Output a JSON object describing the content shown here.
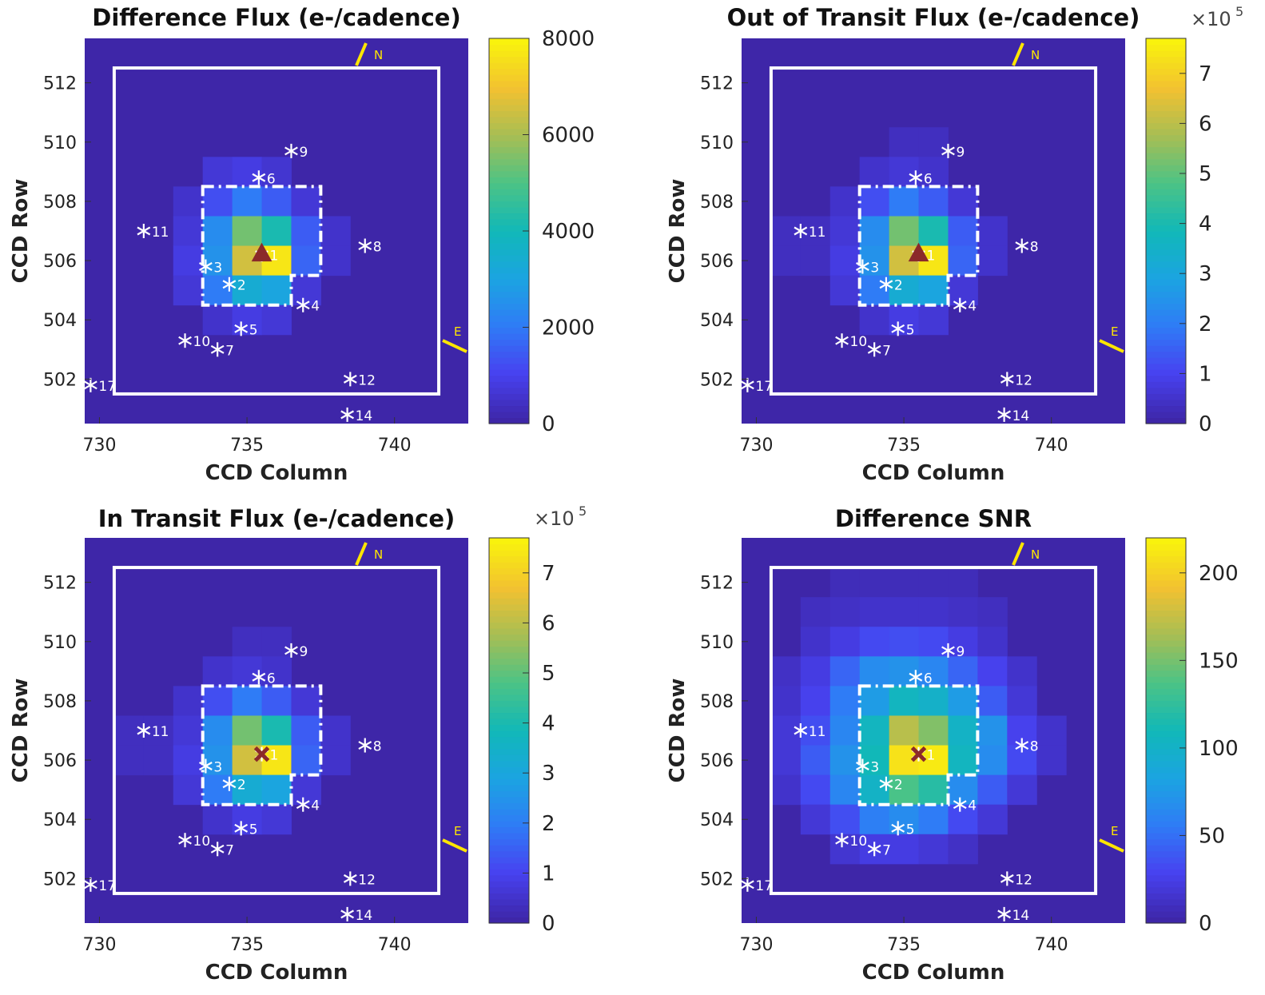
{
  "figure": {
    "background": "#ffffff"
  },
  "colors": {
    "colormap": [
      "#3e26a8",
      "#4742f0",
      "#2f7cf6",
      "#1ba4e1",
      "#11b8b8",
      "#4bc386",
      "#a6be54",
      "#f2c131",
      "#f9f20d"
    ],
    "aperture": "#ffffff",
    "star": "#ffffff",
    "compass": "#ffe600",
    "marker": "#8b2a2a",
    "axes_background": "#3e26a8"
  },
  "shared": {
    "x_ticks": [
      730,
      735,
      740
    ],
    "y_ticks": [
      502,
      504,
      506,
      508,
      510,
      512
    ],
    "xlim": [
      729.5,
      742.5
    ],
    "ylim": [
      500.5,
      513.5
    ],
    "compass": {
      "north_label": "N",
      "east_label": "E"
    },
    "stars": [
      {
        "id": "1",
        "col": 735.5,
        "row": 506.2
      },
      {
        "id": "2",
        "col": 734.4,
        "row": 505.2
      },
      {
        "id": "3",
        "col": 733.6,
        "row": 505.8
      },
      {
        "id": "4",
        "col": 736.9,
        "row": 504.5
      },
      {
        "id": "5",
        "col": 734.8,
        "row": 503.7
      },
      {
        "id": "6",
        "col": 735.4,
        "row": 508.8
      },
      {
        "id": "7",
        "col": 734.0,
        "row": 503.0
      },
      {
        "id": "8",
        "col": 739.0,
        "row": 506.5
      },
      {
        "id": "9",
        "col": 736.5,
        "row": 509.7
      },
      {
        "id": "10",
        "col": 732.9,
        "row": 503.3
      },
      {
        "id": "11",
        "col": 731.5,
        "row": 507.0
      },
      {
        "id": "12",
        "col": 738.5,
        "row": 502.0
      },
      {
        "id": "14",
        "col": 738.4,
        "row": 500.8
      },
      {
        "id": "17",
        "col": 729.7,
        "row": 501.8
      }
    ]
  },
  "chart_data": [
    {
      "type": "heatmap",
      "title": "Difference Flux (e-/cadence)",
      "xlabel": "CCD Column",
      "ylabel": "CCD Row",
      "colorbar": {
        "range": [
          0,
          8000
        ],
        "ticks": [
          "0",
          "2000",
          "4000",
          "6000",
          "8000"
        ],
        "multiplier": ""
      },
      "marker": "triangle",
      "cells": [
        {
          "col": 734,
          "row": 509,
          "v": 0.08
        },
        {
          "col": 735,
          "row": 509,
          "v": 0.1
        },
        {
          "col": 736,
          "row": 509,
          "v": 0.07
        },
        {
          "col": 733,
          "row": 508,
          "v": 0.06
        },
        {
          "col": 734,
          "row": 508,
          "v": 0.15
        },
        {
          "col": 735,
          "row": 508,
          "v": 0.25
        },
        {
          "col": 736,
          "row": 508,
          "v": 0.18
        },
        {
          "col": 737,
          "row": 508,
          "v": 0.08
        },
        {
          "col": 733,
          "row": 507,
          "v": 0.08
        },
        {
          "col": 734,
          "row": 507,
          "v": 0.3
        },
        {
          "col": 735,
          "row": 507,
          "v": 0.68
        },
        {
          "col": 736,
          "row": 507,
          "v": 0.52
        },
        {
          "col": 737,
          "row": 507,
          "v": 0.18
        },
        {
          "col": 738,
          "row": 507,
          "v": 0.06
        },
        {
          "col": 733,
          "row": 506,
          "v": 0.1
        },
        {
          "col": 734,
          "row": 506,
          "v": 0.32
        },
        {
          "col": 735,
          "row": 506,
          "v": 0.82
        },
        {
          "col": 736,
          "row": 506,
          "v": 0.97
        },
        {
          "col": 737,
          "row": 506,
          "v": 0.2
        },
        {
          "col": 738,
          "row": 506,
          "v": 0.06
        },
        {
          "col": 733,
          "row": 505,
          "v": 0.08
        },
        {
          "col": 734,
          "row": 505,
          "v": 0.25
        },
        {
          "col": 735,
          "row": 505,
          "v": 0.42
        },
        {
          "col": 736,
          "row": 505,
          "v": 0.38
        },
        {
          "col": 737,
          "row": 505,
          "v": 0.08
        },
        {
          "col": 734,
          "row": 504,
          "v": 0.06
        },
        {
          "col": 735,
          "row": 504,
          "v": 0.1
        },
        {
          "col": 736,
          "row": 504,
          "v": 0.08
        }
      ]
    },
    {
      "type": "heatmap",
      "title": "Out of Transit Flux (e-/cadence)",
      "xlabel": "CCD Column",
      "ylabel": "CCD Row",
      "colorbar": {
        "range": [
          0,
          7.7
        ],
        "ticks": [
          "0",
          "1",
          "2",
          "3",
          "4",
          "5",
          "6",
          "7"
        ],
        "multiplier": "×10",
        "multiplier_exp": "5"
      },
      "marker": "triangle",
      "cells": [
        {
          "col": 735,
          "row": 510,
          "v": 0.04
        },
        {
          "col": 736,
          "row": 510,
          "v": 0.04
        },
        {
          "col": 734,
          "row": 509,
          "v": 0.06
        },
        {
          "col": 735,
          "row": 509,
          "v": 0.08
        },
        {
          "col": 736,
          "row": 509,
          "v": 0.06
        },
        {
          "col": 733,
          "row": 508,
          "v": 0.06
        },
        {
          "col": 734,
          "row": 508,
          "v": 0.15
        },
        {
          "col": 735,
          "row": 508,
          "v": 0.25
        },
        {
          "col": 736,
          "row": 508,
          "v": 0.18
        },
        {
          "col": 737,
          "row": 508,
          "v": 0.08
        },
        {
          "col": 731,
          "row": 507,
          "v": 0.04
        },
        {
          "col": 732,
          "row": 507,
          "v": 0.04
        },
        {
          "col": 733,
          "row": 507,
          "v": 0.08
        },
        {
          "col": 734,
          "row": 507,
          "v": 0.3
        },
        {
          "col": 735,
          "row": 507,
          "v": 0.68
        },
        {
          "col": 736,
          "row": 507,
          "v": 0.52
        },
        {
          "col": 737,
          "row": 507,
          "v": 0.18
        },
        {
          "col": 738,
          "row": 507,
          "v": 0.06
        },
        {
          "col": 731,
          "row": 506,
          "v": 0.04
        },
        {
          "col": 732,
          "row": 506,
          "v": 0.04
        },
        {
          "col": 733,
          "row": 506,
          "v": 0.1
        },
        {
          "col": 734,
          "row": 506,
          "v": 0.32
        },
        {
          "col": 735,
          "row": 506,
          "v": 0.82
        },
        {
          "col": 736,
          "row": 506,
          "v": 0.97
        },
        {
          "col": 737,
          "row": 506,
          "v": 0.2
        },
        {
          "col": 738,
          "row": 506,
          "v": 0.06
        },
        {
          "col": 733,
          "row": 505,
          "v": 0.08
        },
        {
          "col": 734,
          "row": 505,
          "v": 0.25
        },
        {
          "col": 735,
          "row": 505,
          "v": 0.42
        },
        {
          "col": 736,
          "row": 505,
          "v": 0.38
        },
        {
          "col": 737,
          "row": 505,
          "v": 0.08
        },
        {
          "col": 734,
          "row": 504,
          "v": 0.06
        },
        {
          "col": 735,
          "row": 504,
          "v": 0.1
        },
        {
          "col": 736,
          "row": 504,
          "v": 0.08
        }
      ]
    },
    {
      "type": "heatmap",
      "title": "In Transit Flux (e-/cadence)",
      "xlabel": "CCD Column",
      "ylabel": "CCD Row",
      "colorbar": {
        "range": [
          0,
          7.7
        ],
        "ticks": [
          "0",
          "1",
          "2",
          "3",
          "4",
          "5",
          "6",
          "7"
        ],
        "multiplier": "×10",
        "multiplier_exp": "5"
      },
      "marker": "x",
      "cells": [
        {
          "col": 735,
          "row": 510,
          "v": 0.04
        },
        {
          "col": 736,
          "row": 510,
          "v": 0.04
        },
        {
          "col": 734,
          "row": 509,
          "v": 0.06
        },
        {
          "col": 735,
          "row": 509,
          "v": 0.08
        },
        {
          "col": 736,
          "row": 509,
          "v": 0.06
        },
        {
          "col": 733,
          "row": 508,
          "v": 0.06
        },
        {
          "col": 734,
          "row": 508,
          "v": 0.15
        },
        {
          "col": 735,
          "row": 508,
          "v": 0.25
        },
        {
          "col": 736,
          "row": 508,
          "v": 0.18
        },
        {
          "col": 737,
          "row": 508,
          "v": 0.08
        },
        {
          "col": 731,
          "row": 507,
          "v": 0.04
        },
        {
          "col": 732,
          "row": 507,
          "v": 0.04
        },
        {
          "col": 733,
          "row": 507,
          "v": 0.08
        },
        {
          "col": 734,
          "row": 507,
          "v": 0.3
        },
        {
          "col": 735,
          "row": 507,
          "v": 0.68
        },
        {
          "col": 736,
          "row": 507,
          "v": 0.52
        },
        {
          "col": 737,
          "row": 507,
          "v": 0.18
        },
        {
          "col": 738,
          "row": 507,
          "v": 0.06
        },
        {
          "col": 731,
          "row": 506,
          "v": 0.04
        },
        {
          "col": 732,
          "row": 506,
          "v": 0.04
        },
        {
          "col": 733,
          "row": 506,
          "v": 0.1
        },
        {
          "col": 734,
          "row": 506,
          "v": 0.32
        },
        {
          "col": 735,
          "row": 506,
          "v": 0.82
        },
        {
          "col": 736,
          "row": 506,
          "v": 0.97
        },
        {
          "col": 737,
          "row": 506,
          "v": 0.2
        },
        {
          "col": 738,
          "row": 506,
          "v": 0.06
        },
        {
          "col": 733,
          "row": 505,
          "v": 0.08
        },
        {
          "col": 734,
          "row": 505,
          "v": 0.25
        },
        {
          "col": 735,
          "row": 505,
          "v": 0.42
        },
        {
          "col": 736,
          "row": 505,
          "v": 0.38
        },
        {
          "col": 737,
          "row": 505,
          "v": 0.08
        },
        {
          "col": 734,
          "row": 504,
          "v": 0.06
        },
        {
          "col": 735,
          "row": 504,
          "v": 0.1
        },
        {
          "col": 736,
          "row": 504,
          "v": 0.08
        }
      ]
    },
    {
      "type": "heatmap",
      "title": "Difference SNR",
      "xlabel": "CCD Column",
      "ylabel": "CCD Row",
      "colorbar": {
        "range": [
          0,
          220
        ],
        "ticks": [
          "0",
          "50",
          "100",
          "150",
          "200"
        ],
        "multiplier": ""
      },
      "marker": "x",
      "cells": [
        {
          "col": 733,
          "row": 512,
          "v": 0.03
        },
        {
          "col": 734,
          "row": 512,
          "v": 0.03
        },
        {
          "col": 735,
          "row": 512,
          "v": 0.03
        },
        {
          "col": 736,
          "row": 512,
          "v": 0.03
        },
        {
          "col": 737,
          "row": 512,
          "v": 0.03
        },
        {
          "col": 732,
          "row": 511,
          "v": 0.04
        },
        {
          "col": 733,
          "row": 511,
          "v": 0.05
        },
        {
          "col": 734,
          "row": 511,
          "v": 0.06
        },
        {
          "col": 735,
          "row": 511,
          "v": 0.06
        },
        {
          "col": 736,
          "row": 511,
          "v": 0.06
        },
        {
          "col": 737,
          "row": 511,
          "v": 0.05
        },
        {
          "col": 738,
          "row": 511,
          "v": 0.04
        },
        {
          "col": 732,
          "row": 510,
          "v": 0.06
        },
        {
          "col": 733,
          "row": 510,
          "v": 0.1
        },
        {
          "col": 734,
          "row": 510,
          "v": 0.14
        },
        {
          "col": 735,
          "row": 510,
          "v": 0.15
        },
        {
          "col": 736,
          "row": 510,
          "v": 0.14
        },
        {
          "col": 737,
          "row": 510,
          "v": 0.1
        },
        {
          "col": 738,
          "row": 510,
          "v": 0.06
        },
        {
          "col": 731,
          "row": 509,
          "v": 0.05
        },
        {
          "col": 732,
          "row": 509,
          "v": 0.1
        },
        {
          "col": 733,
          "row": 509,
          "v": 0.2
        },
        {
          "col": 734,
          "row": 509,
          "v": 0.3
        },
        {
          "col": 735,
          "row": 509,
          "v": 0.32
        },
        {
          "col": 736,
          "row": 509,
          "v": 0.28
        },
        {
          "col": 737,
          "row": 509,
          "v": 0.2
        },
        {
          "col": 738,
          "row": 509,
          "v": 0.12
        },
        {
          "col": 739,
          "row": 509,
          "v": 0.06
        },
        {
          "col": 731,
          "row": 508,
          "v": 0.06
        },
        {
          "col": 732,
          "row": 508,
          "v": 0.12
        },
        {
          "col": 733,
          "row": 508,
          "v": 0.25
        },
        {
          "col": 734,
          "row": 508,
          "v": 0.35
        },
        {
          "col": 735,
          "row": 508,
          "v": 0.48
        },
        {
          "col": 736,
          "row": 508,
          "v": 0.45
        },
        {
          "col": 737,
          "row": 508,
          "v": 0.35
        },
        {
          "col": 738,
          "row": 508,
          "v": 0.18
        },
        {
          "col": 739,
          "row": 508,
          "v": 0.08
        },
        {
          "col": 731,
          "row": 507,
          "v": 0.08
        },
        {
          "col": 732,
          "row": 507,
          "v": 0.15
        },
        {
          "col": 733,
          "row": 507,
          "v": 0.28
        },
        {
          "col": 734,
          "row": 507,
          "v": 0.48
        },
        {
          "col": 735,
          "row": 507,
          "v": 0.78
        },
        {
          "col": 736,
          "row": 507,
          "v": 0.7
        },
        {
          "col": 737,
          "row": 507,
          "v": 0.46
        },
        {
          "col": 738,
          "row": 507,
          "v": 0.32
        },
        {
          "col": 739,
          "row": 507,
          "v": 0.12
        },
        {
          "col": 740,
          "row": 507,
          "v": 0.06
        },
        {
          "col": 731,
          "row": 506,
          "v": 0.08
        },
        {
          "col": 732,
          "row": 506,
          "v": 0.18
        },
        {
          "col": 733,
          "row": 506,
          "v": 0.32
        },
        {
          "col": 734,
          "row": 506,
          "v": 0.5
        },
        {
          "col": 735,
          "row": 506,
          "v": 0.96
        },
        {
          "col": 736,
          "row": 506,
          "v": 0.98
        },
        {
          "col": 737,
          "row": 506,
          "v": 0.48
        },
        {
          "col": 738,
          "row": 506,
          "v": 0.3
        },
        {
          "col": 739,
          "row": 506,
          "v": 0.14
        },
        {
          "col": 740,
          "row": 506,
          "v": 0.06
        },
        {
          "col": 731,
          "row": 505,
          "v": 0.06
        },
        {
          "col": 732,
          "row": 505,
          "v": 0.14
        },
        {
          "col": 733,
          "row": 505,
          "v": 0.28
        },
        {
          "col": 734,
          "row": 505,
          "v": 0.46
        },
        {
          "col": 735,
          "row": 505,
          "v": 0.62
        },
        {
          "col": 736,
          "row": 505,
          "v": 0.55
        },
        {
          "col": 737,
          "row": 505,
          "v": 0.3
        },
        {
          "col": 738,
          "row": 505,
          "v": 0.18
        },
        {
          "col": 739,
          "row": 505,
          "v": 0.08
        },
        {
          "col": 732,
          "row": 504,
          "v": 0.08
        },
        {
          "col": 733,
          "row": 504,
          "v": 0.15
        },
        {
          "col": 734,
          "row": 504,
          "v": 0.26
        },
        {
          "col": 735,
          "row": 504,
          "v": 0.3
        },
        {
          "col": 736,
          "row": 504,
          "v": 0.25
        },
        {
          "col": 737,
          "row": 504,
          "v": 0.14
        },
        {
          "col": 738,
          "row": 504,
          "v": 0.08
        },
        {
          "col": 733,
          "row": 503,
          "v": 0.07
        },
        {
          "col": 734,
          "row": 503,
          "v": 0.1
        },
        {
          "col": 735,
          "row": 503,
          "v": 0.1
        },
        {
          "col": 736,
          "row": 503,
          "v": 0.08
        },
        {
          "col": 737,
          "row": 503,
          "v": 0.05
        }
      ]
    }
  ]
}
